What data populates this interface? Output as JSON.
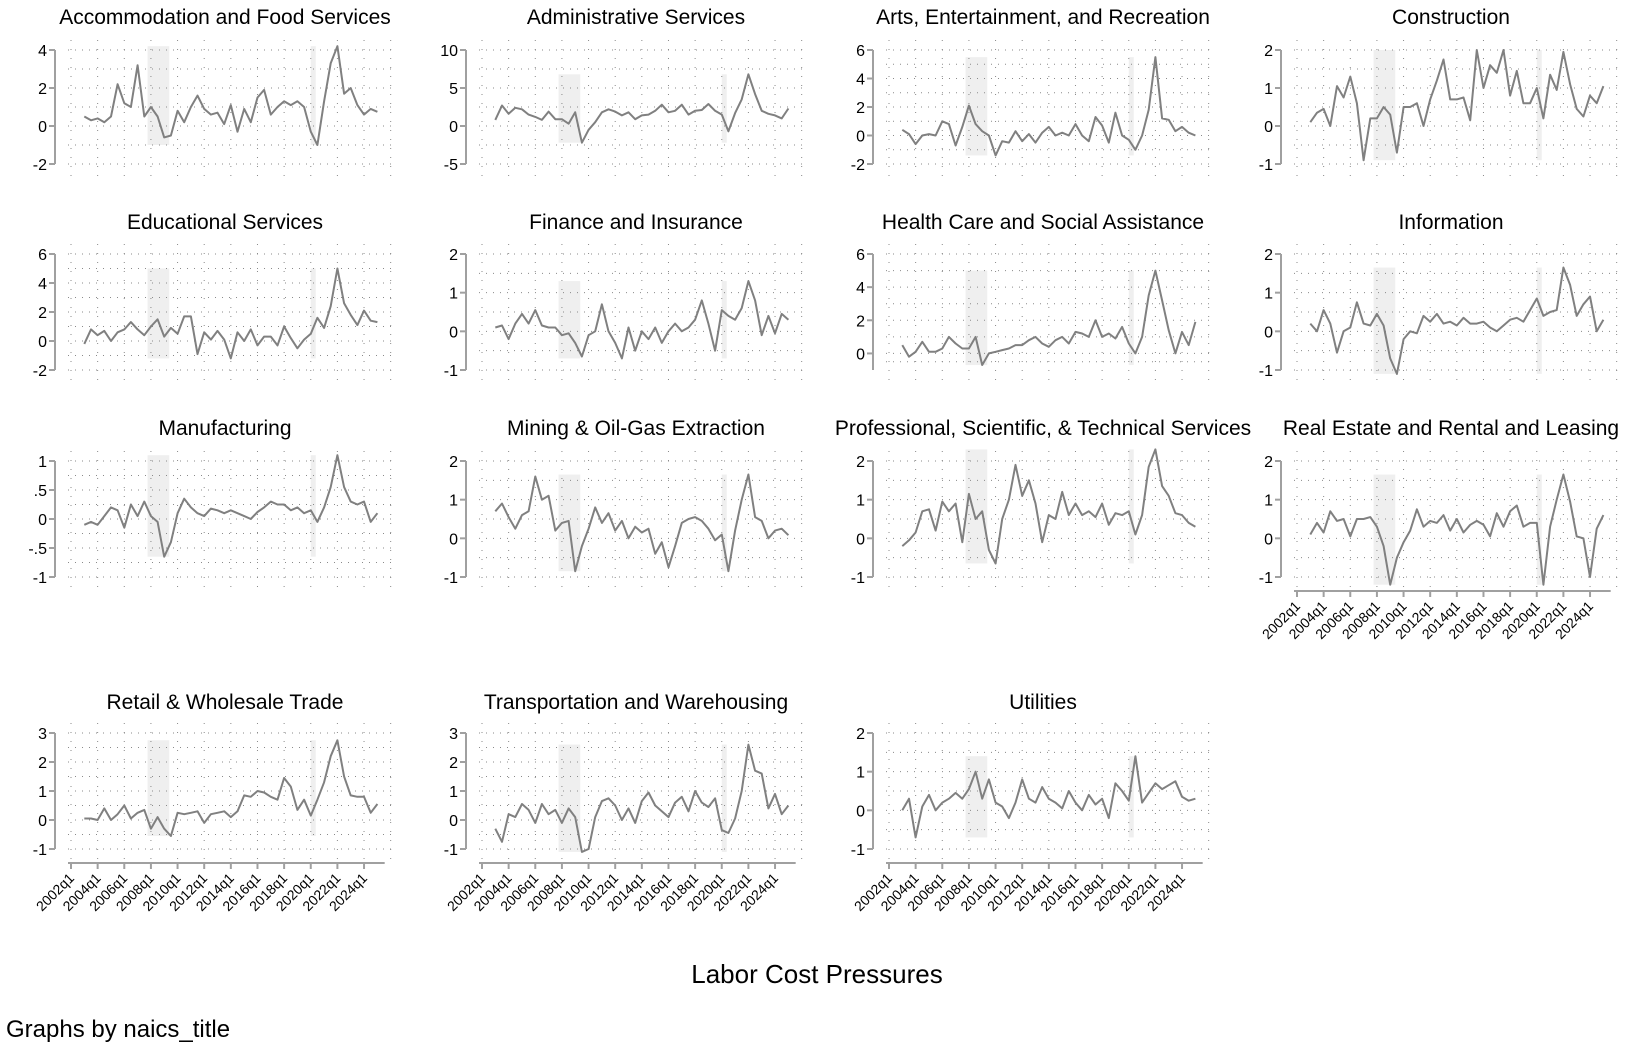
{
  "chart_data": {
    "type": "line",
    "xlabel": "Labor Cost Pressures",
    "note": "Graphs by naics_title",
    "line_color": "#808080",
    "shade_color": "#efefef",
    "grid": "dotted",
    "shaded_periods": [
      [
        "2007q4",
        "2009q2"
      ],
      [
        "2020q1",
        "2020q2"
      ]
    ],
    "xticks": [
      "2002q1",
      "2004q1",
      "2006q1",
      "2008q1",
      "2010q1",
      "2012q1",
      "2014q1",
      "2016q1",
      "2018q1",
      "2020q1",
      "2022q1",
      "2024q1"
    ],
    "xlim": [
      "2002q1",
      "2026q1"
    ],
    "x": [
      "2003q1",
      "2003q3",
      "2004q1",
      "2004q3",
      "2005q1",
      "2005q3",
      "2006q1",
      "2006q3",
      "2007q1",
      "2007q3",
      "2008q1",
      "2008q3",
      "2009q1",
      "2009q3",
      "2010q1",
      "2010q3",
      "2011q1",
      "2011q3",
      "2012q1",
      "2012q3",
      "2013q1",
      "2013q3",
      "2014q1",
      "2014q3",
      "2015q1",
      "2015q3",
      "2016q1",
      "2016q3",
      "2017q1",
      "2017q3",
      "2018q1",
      "2018q3",
      "2019q1",
      "2019q3",
      "2020q1",
      "2020q3",
      "2021q1",
      "2021q3",
      "2022q1",
      "2022q3",
      "2023q1",
      "2023q3",
      "2024q1",
      "2024q3",
      "2025q1"
    ],
    "panels": [
      {
        "title": "Accommodation and Food Services",
        "ylim": [
          -2,
          4
        ],
        "yticks": [
          [
            "-2",
            -2
          ],
          [
            "0",
            0
          ],
          [
            "2",
            2
          ],
          [
            "4",
            4
          ]
        ],
        "show_xaxis": false,
        "values": [
          0.5,
          0.3,
          0.4,
          0.2,
          0.5,
          2.2,
          1.2,
          1.0,
          3.2,
          0.5,
          1.0,
          0.5,
          -0.6,
          -0.5,
          0.8,
          0.2,
          1.0,
          1.6,
          0.9,
          0.6,
          0.7,
          0.1,
          1.1,
          -0.3,
          0.9,
          0.2,
          1.5,
          1.9,
          0.6,
          1.0,
          1.3,
          1.1,
          1.3,
          1.0,
          -0.3,
          -1.0,
          1.3,
          3.3,
          4.2,
          1.7,
          2.0,
          1.1,
          0.6,
          0.9,
          0.75
        ]
      },
      {
        "title": "Administrative Services",
        "ylim": [
          -5,
          10
        ],
        "yticks": [
          [
            "-5",
            -5
          ],
          [
            "0",
            0
          ],
          [
            "5",
            5
          ],
          [
            "10",
            10
          ]
        ],
        "show_xaxis": false,
        "values": [
          0.8,
          2.7,
          1.6,
          2.4,
          2.2,
          1.5,
          1.2,
          0.8,
          1.9,
          0.9,
          0.9,
          0.3,
          1.8,
          -2.2,
          -0.5,
          0.5,
          1.8,
          2.2,
          1.9,
          1.4,
          1.8,
          0.9,
          1.4,
          1.5,
          2.0,
          2.8,
          1.8,
          2.0,
          2.8,
          1.5,
          2.0,
          2.1,
          2.9,
          2.0,
          1.5,
          -0.7,
          1.7,
          3.5,
          6.8,
          4.2,
          2.0,
          1.6,
          1.4,
          1.0,
          2.3
        ]
      },
      {
        "title": "Arts, Entertainment, and Recreation",
        "ylim": [
          -2,
          6
        ],
        "yticks": [
          [
            "-2",
            -2
          ],
          [
            "0",
            0
          ],
          [
            "2",
            2
          ],
          [
            "4",
            4
          ],
          [
            "6",
            6
          ]
        ],
        "show_xaxis": false,
        "values": [
          0.4,
          0.1,
          -0.6,
          0.0,
          0.1,
          0.0,
          1.0,
          0.8,
          -0.7,
          0.6,
          2.1,
          0.8,
          0.3,
          0.0,
          -1.4,
          -0.4,
          -0.5,
          0.3,
          -0.4,
          0.1,
          -0.5,
          0.2,
          0.6,
          0.0,
          0.2,
          0.0,
          0.8,
          0.0,
          -0.4,
          1.3,
          0.7,
          -0.5,
          1.6,
          0.0,
          -0.3,
          -1.0,
          0.0,
          1.8,
          5.5,
          1.2,
          1.1,
          0.3,
          0.6,
          0.2,
          0.0
        ]
      },
      {
        "title": "Construction",
        "ylim": [
          -1,
          2
        ],
        "yticks": [
          [
            "-1",
            -1
          ],
          [
            "0",
            0
          ],
          [
            "1",
            1
          ],
          [
            "2",
            2
          ]
        ],
        "show_xaxis": false,
        "values": [
          0.1,
          0.35,
          0.45,
          0.0,
          1.05,
          0.75,
          1.3,
          0.6,
          -0.9,
          0.2,
          0.2,
          0.5,
          0.3,
          -0.7,
          0.5,
          0.5,
          0.6,
          0.0,
          0.7,
          1.2,
          1.75,
          0.7,
          0.7,
          0.75,
          0.15,
          2.0,
          1.0,
          1.6,
          1.4,
          2.0,
          0.8,
          1.45,
          0.6,
          0.6,
          1.0,
          0.2,
          1.35,
          0.95,
          1.95,
          1.1,
          0.45,
          0.25,
          0.8,
          0.6,
          1.05
        ]
      },
      {
        "title": "Educational Services",
        "ylim": [
          -2,
          6
        ],
        "yticks": [
          [
            "-2",
            -2
          ],
          [
            "0",
            0
          ],
          [
            "2",
            2
          ],
          [
            "4",
            4
          ],
          [
            "6",
            6
          ]
        ],
        "show_xaxis": false,
        "values": [
          -0.2,
          0.8,
          0.4,
          0.7,
          0.0,
          0.6,
          0.8,
          1.3,
          0.8,
          0.4,
          1.0,
          1.5,
          0.3,
          0.9,
          0.5,
          1.7,
          1.7,
          -0.9,
          0.6,
          0.1,
          0.7,
          0.1,
          -1.2,
          0.6,
          0.0,
          0.8,
          -0.3,
          0.3,
          0.3,
          -0.3,
          1.0,
          0.2,
          -0.5,
          0.1,
          0.5,
          1.6,
          0.9,
          2.4,
          5.0,
          2.6,
          1.8,
          1.1,
          2.1,
          1.4,
          1.3
        ]
      },
      {
        "title": "Finance and Insurance",
        "ylim": [
          -1,
          2
        ],
        "yticks": [
          [
            "-1",
            -1
          ],
          [
            "0",
            0
          ],
          [
            "1",
            1
          ],
          [
            "2",
            2
          ]
        ],
        "show_xaxis": false,
        "values": [
          0.1,
          0.15,
          -0.2,
          0.2,
          0.45,
          0.2,
          0.55,
          0.15,
          0.1,
          0.1,
          -0.1,
          -0.05,
          -0.3,
          -0.65,
          -0.1,
          0.0,
          0.7,
          0.0,
          -0.3,
          -0.7,
          0.1,
          -0.5,
          0.0,
          -0.2,
          0.1,
          -0.3,
          0.0,
          0.2,
          0.0,
          0.1,
          0.3,
          0.8,
          0.2,
          -0.5,
          0.55,
          0.4,
          0.3,
          0.6,
          1.3,
          0.8,
          -0.1,
          0.4,
          -0.05,
          0.45,
          0.3
        ]
      },
      {
        "title": "Health Care and Social Assistance",
        "ylim": [
          -1,
          6
        ],
        "yticks": [
          [
            "0",
            0
          ],
          [
            "2",
            2
          ],
          [
            "4",
            4
          ],
          [
            "6",
            6
          ]
        ],
        "show_xaxis": false,
        "values": [
          0.5,
          -0.2,
          0.1,
          0.7,
          0.1,
          0.1,
          0.3,
          1.0,
          0.6,
          0.3,
          0.3,
          1.0,
          -0.7,
          0.0,
          0.1,
          0.2,
          0.3,
          0.5,
          0.5,
          0.8,
          1.0,
          0.6,
          0.4,
          0.8,
          1.0,
          0.6,
          1.3,
          1.2,
          1.0,
          2.0,
          1.0,
          1.2,
          0.9,
          1.6,
          0.6,
          0.0,
          1.0,
          3.5,
          5.0,
          3.2,
          1.4,
          0.0,
          1.3,
          0.5,
          1.9
        ]
      },
      {
        "title": "Information",
        "ylim": [
          -1,
          2
        ],
        "yticks": [
          [
            "-1",
            -1
          ],
          [
            "0",
            0
          ],
          [
            "1",
            1
          ],
          [
            "2",
            2
          ]
        ],
        "show_xaxis": false,
        "values": [
          0.2,
          0.0,
          0.55,
          0.2,
          -0.55,
          0.0,
          0.1,
          0.75,
          0.2,
          0.15,
          0.45,
          0.15,
          -0.7,
          -1.1,
          -0.2,
          0.0,
          -0.05,
          0.4,
          0.25,
          0.45,
          0.2,
          0.25,
          0.15,
          0.35,
          0.2,
          0.2,
          0.25,
          0.1,
          0.0,
          0.15,
          0.3,
          0.35,
          0.25,
          0.55,
          0.85,
          0.4,
          0.5,
          0.55,
          1.65,
          1.2,
          0.4,
          0.7,
          0.9,
          0.0,
          0.3
        ]
      },
      {
        "title": "Manufacturing",
        "ylim": [
          -1,
          1
        ],
        "yticks": [
          [
            "-1",
            -1
          ],
          [
            "-.5",
            -0.5
          ],
          [
            "0",
            0
          ],
          [
            ".5",
            0.5
          ],
          [
            "1",
            1
          ]
        ],
        "show_xaxis": false,
        "values": [
          -0.1,
          -0.05,
          -0.1,
          0.05,
          0.2,
          0.15,
          -0.15,
          0.25,
          0.05,
          0.3,
          0.05,
          -0.05,
          -0.65,
          -0.4,
          0.1,
          0.35,
          0.2,
          0.1,
          0.05,
          0.18,
          0.15,
          0.1,
          0.15,
          0.1,
          0.05,
          0.0,
          0.12,
          0.2,
          0.3,
          0.25,
          0.25,
          0.15,
          0.2,
          0.1,
          0.15,
          -0.05,
          0.2,
          0.55,
          1.1,
          0.55,
          0.3,
          0.25,
          0.3,
          -0.05,
          0.1
        ]
      },
      {
        "title": "Mining & Oil-Gas Extraction",
        "ylim": [
          -1,
          2
        ],
        "yticks": [
          [
            "-1",
            -1
          ],
          [
            "0",
            0
          ],
          [
            "1",
            1
          ],
          [
            "2",
            2
          ]
        ],
        "show_xaxis": false,
        "values": [
          0.7,
          0.9,
          0.55,
          0.25,
          0.6,
          0.7,
          1.6,
          1.0,
          1.1,
          0.2,
          0.4,
          0.45,
          -0.85,
          -0.2,
          0.25,
          0.8,
          0.4,
          0.65,
          0.2,
          0.45,
          0.0,
          0.3,
          0.15,
          0.25,
          -0.4,
          -0.1,
          -0.75,
          -0.2,
          0.4,
          0.5,
          0.55,
          0.45,
          0.25,
          -0.05,
          0.1,
          -0.85,
          0.2,
          1.0,
          1.65,
          0.55,
          0.45,
          0.0,
          0.2,
          0.25,
          0.08
        ]
      },
      {
        "title": "Professional, Scientific, & Technical Services",
        "ylim": [
          -1,
          2
        ],
        "yticks": [
          [
            "-1",
            -1
          ],
          [
            "0",
            0
          ],
          [
            "1",
            1
          ],
          [
            "2",
            2
          ]
        ],
        "show_xaxis": false,
        "values": [
          -0.2,
          -0.05,
          0.15,
          0.7,
          0.75,
          0.2,
          0.95,
          0.7,
          0.9,
          -0.1,
          1.15,
          0.5,
          0.7,
          -0.3,
          -0.65,
          0.5,
          1.0,
          1.9,
          1.1,
          1.5,
          0.9,
          -0.1,
          0.6,
          0.5,
          1.2,
          0.6,
          0.9,
          0.6,
          0.7,
          0.55,
          0.9,
          0.35,
          0.65,
          0.6,
          0.7,
          0.1,
          0.6,
          1.85,
          2.3,
          1.35,
          1.1,
          0.65,
          0.6,
          0.4,
          0.3
        ]
      },
      {
        "title": "Real Estate and Rental and Leasing",
        "ylim": [
          -1,
          2
        ],
        "yticks": [
          [
            "-1",
            -1
          ],
          [
            "0",
            0
          ],
          [
            "1",
            1
          ],
          [
            "2",
            2
          ]
        ],
        "show_xaxis": true,
        "values": [
          0.1,
          0.4,
          0.15,
          0.7,
          0.45,
          0.5,
          0.05,
          0.5,
          0.5,
          0.55,
          0.3,
          -0.2,
          -1.2,
          -0.5,
          -0.1,
          0.2,
          0.75,
          0.3,
          0.45,
          0.4,
          0.6,
          0.2,
          0.5,
          0.15,
          0.35,
          0.45,
          0.35,
          0.05,
          0.65,
          0.3,
          0.7,
          0.85,
          0.3,
          0.4,
          0.4,
          -1.2,
          0.3,
          1.0,
          1.65,
          0.95,
          0.05,
          0.0,
          -1.0,
          0.25,
          0.6
        ]
      },
      {
        "title": "Retail & Wholesale Trade",
        "ylim": [
          -1,
          3
        ],
        "yticks": [
          [
            "-1",
            -1
          ],
          [
            "0",
            0
          ],
          [
            "1",
            1
          ],
          [
            "2",
            2
          ],
          [
            "3",
            3
          ]
        ],
        "show_xaxis": true,
        "values": [
          0.05,
          0.05,
          0.0,
          0.4,
          0.0,
          0.2,
          0.5,
          0.05,
          0.25,
          0.35,
          -0.3,
          0.1,
          -0.3,
          -0.55,
          0.25,
          0.2,
          0.25,
          0.3,
          -0.1,
          0.2,
          0.25,
          0.3,
          0.1,
          0.3,
          0.85,
          0.8,
          1.0,
          0.95,
          0.8,
          0.7,
          1.45,
          1.15,
          0.35,
          0.7,
          0.15,
          0.7,
          1.3,
          2.2,
          2.75,
          1.5,
          0.85,
          0.8,
          0.8,
          0.25,
          0.55
        ]
      },
      {
        "title": "Transportation and Warehousing",
        "ylim": [
          -1,
          3
        ],
        "yticks": [
          [
            "-1",
            -1
          ],
          [
            "0",
            0
          ],
          [
            "1",
            1
          ],
          [
            "2",
            2
          ],
          [
            "3",
            3
          ]
        ],
        "show_xaxis": true,
        "values": [
          -0.3,
          -0.75,
          0.2,
          0.1,
          0.55,
          0.35,
          -0.1,
          0.55,
          0.2,
          0.35,
          -0.1,
          0.4,
          0.1,
          -1.1,
          -1.0,
          0.1,
          0.65,
          0.75,
          0.5,
          0.0,
          0.4,
          -0.1,
          0.65,
          0.95,
          0.5,
          0.3,
          0.1,
          0.6,
          0.8,
          0.3,
          1.0,
          0.6,
          0.45,
          0.75,
          -0.35,
          -0.45,
          0.05,
          1.0,
          2.6,
          1.7,
          1.6,
          0.4,
          0.9,
          0.2,
          0.5
        ]
      },
      {
        "title": "Utilities",
        "ylim": [
          -1,
          2
        ],
        "yticks": [
          [
            "-1",
            -1
          ],
          [
            "0",
            0
          ],
          [
            "1",
            1
          ],
          [
            "2",
            2
          ]
        ],
        "show_xaxis": true,
        "values": [
          0.0,
          0.3,
          -0.7,
          0.1,
          0.4,
          0.0,
          0.2,
          0.3,
          0.45,
          0.3,
          0.55,
          1.0,
          0.3,
          0.8,
          0.2,
          0.1,
          -0.2,
          0.2,
          0.8,
          0.3,
          0.2,
          0.6,
          0.3,
          0.2,
          0.05,
          0.5,
          0.2,
          0.0,
          0.4,
          0.15,
          0.3,
          -0.2,
          0.7,
          0.5,
          0.25,
          1.4,
          0.2,
          0.45,
          0.7,
          0.55,
          0.65,
          0.75,
          0.35,
          0.25,
          0.3
        ]
      }
    ]
  }
}
